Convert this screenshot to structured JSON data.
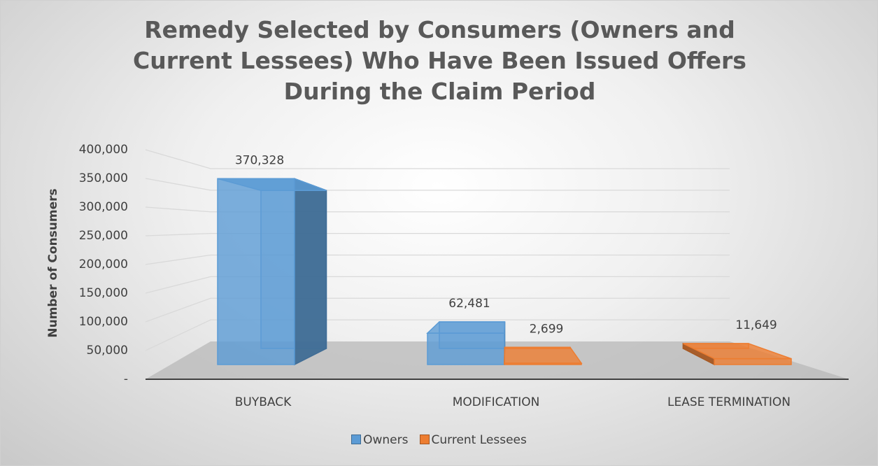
{
  "chart_data": {
    "type": "bar3d",
    "title": "Remedy Selected by Consumers (Owners and Current Lessees) Who Have Been Issued Offers During the Claim Period",
    "y_label": "Number of Consumers",
    "categories": [
      "BUYBACK",
      "MODIFICATION",
      "LEASE TERMINATION"
    ],
    "series": [
      {
        "name": "Owners",
        "color": "#5b9bd5",
        "values": [
          370328,
          62481,
          null
        ],
        "value_labels": [
          "370,328",
          "62,481",
          null
        ]
      },
      {
        "name": "Current Lessees",
        "color": "#ed7d31",
        "values": [
          null,
          2699,
          11649
        ],
        "value_labels": [
          null,
          "2,699",
          "11,649"
        ]
      }
    ],
    "ylim": [
      0,
      400000
    ],
    "yticks": [
      {
        "value": 0,
        "label": "-"
      },
      {
        "value": 50000,
        "label": "50,000"
      },
      {
        "value": 100000,
        "label": "100,000"
      },
      {
        "value": 150000,
        "label": "150,000"
      },
      {
        "value": 200000,
        "label": "200,000"
      },
      {
        "value": 250000,
        "label": "250,000"
      },
      {
        "value": 300000,
        "label": "300,000"
      },
      {
        "value": 350000,
        "label": "350,000"
      },
      {
        "value": 400000,
        "label": "400,000"
      }
    ],
    "grid": true,
    "legend": "bottom"
  }
}
